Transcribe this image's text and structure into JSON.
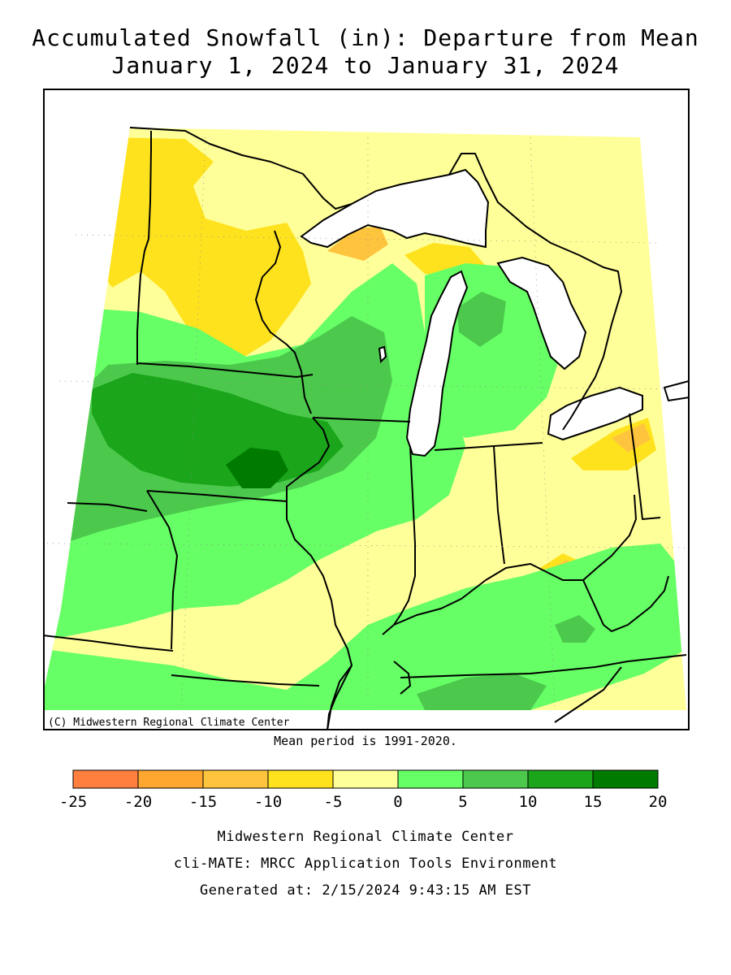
{
  "title": {
    "line1": "Accumulated Snowfall (in): Departure from Mean",
    "line2": "January 1, 2024 to January 31, 2024"
  },
  "map": {
    "copyright": "(C) Midwestern Regional Climate Center",
    "mean_period": "Mean period is 1991-2020."
  },
  "legend": {
    "unit": "in",
    "breaks": [
      "-25",
      "-20",
      "-15",
      "-10",
      "-5",
      "0",
      "5",
      "10",
      "15",
      "20"
    ],
    "colors": [
      "#ff7f3f",
      "#ffa72e",
      "#ffc43e",
      "#ffe21e",
      "#ffff99",
      "#66ff66",
      "#4cc94c",
      "#1aa51a",
      "#007b00"
    ]
  },
  "colors": {
    "water": "#ffffff",
    "border": "#000000"
  },
  "footer": {
    "line1": "Midwestern Regional Climate Center",
    "line2": "cli-MATE: MRCC Application Tools Environment",
    "line3": "Generated at: 2/15/2024 9:43:15 AM EST"
  }
}
